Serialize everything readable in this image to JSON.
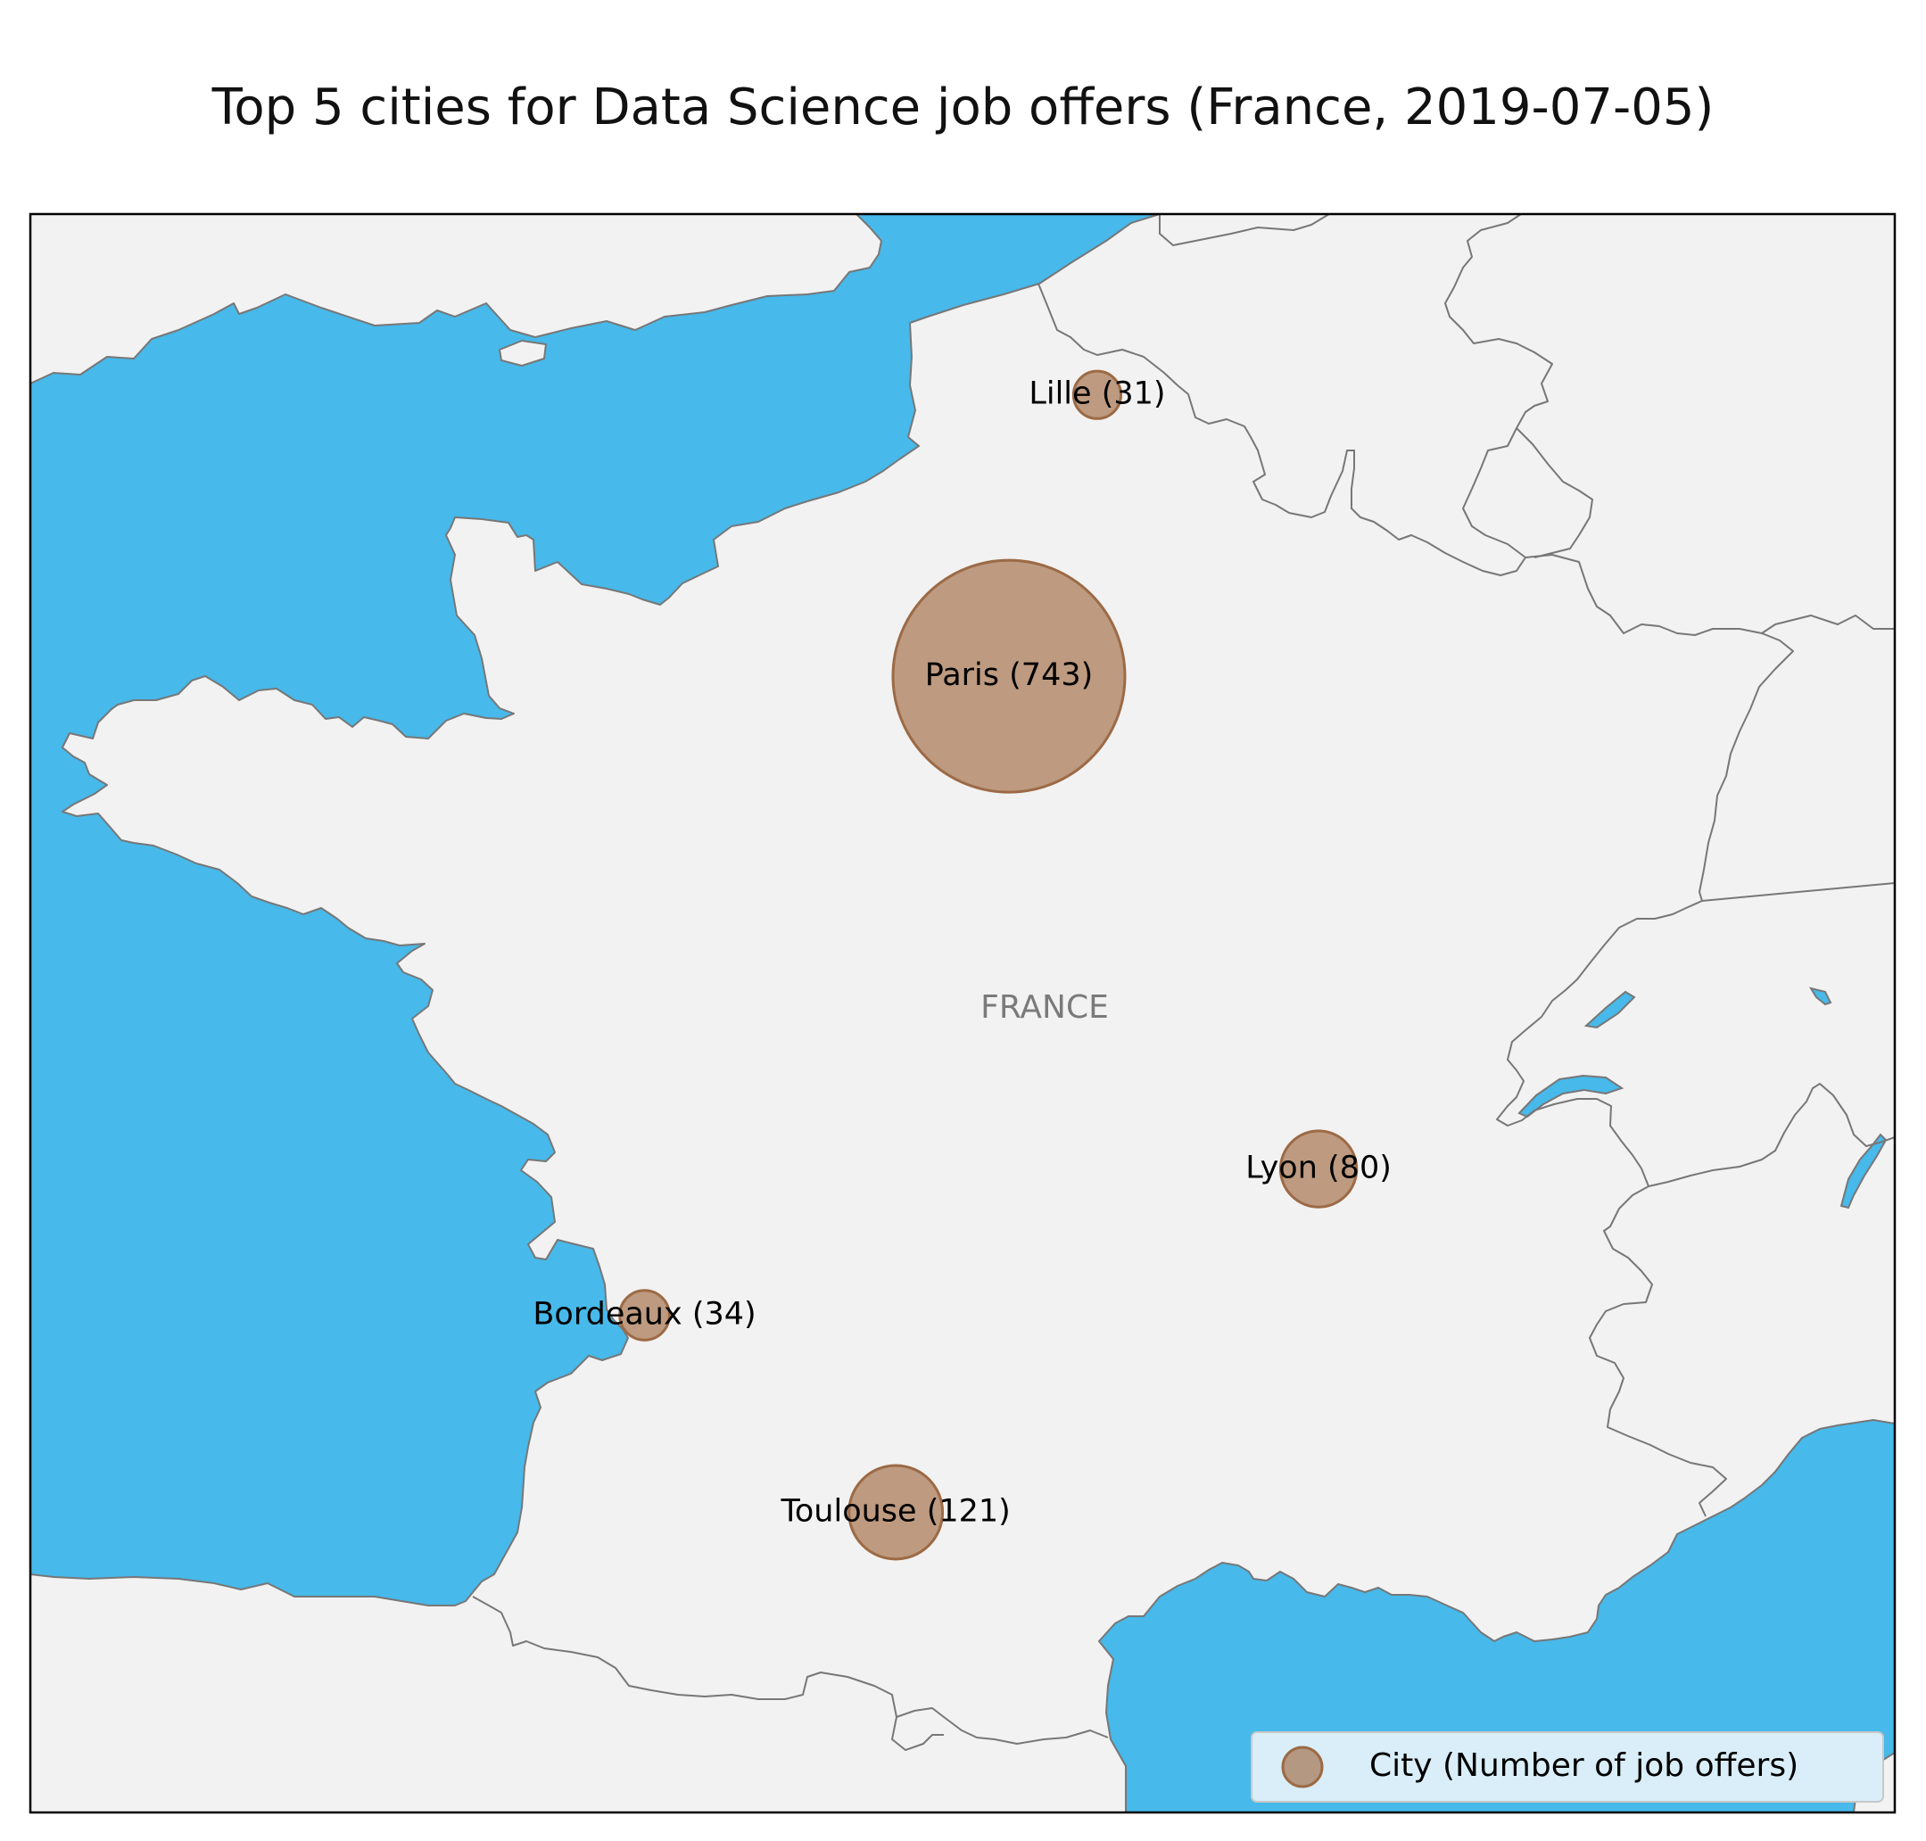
{
  "title": "Top 5 cities for Data Science job offers (France, 2019-07-05)",
  "country_label": "FRANCE",
  "legend": {
    "label": "City (Number of job offers)"
  },
  "colors": {
    "sea": "#47b9ea",
    "land": "#f2f2f2",
    "border": "#777777",
    "marker": "#a06a42"
  },
  "cities": [
    {
      "name": "Paris",
      "offers": 743,
      "label": "Paris (743)",
      "lon": 2.35,
      "lat": 48.86
    },
    {
      "name": "Toulouse",
      "offers": 121,
      "label": "Toulouse (121)",
      "lon": 1.44,
      "lat": 43.6
    },
    {
      "name": "Lyon",
      "offers": 80,
      "label": "Lyon (80)",
      "lon": 4.84,
      "lat": 45.76
    },
    {
      "name": "Bordeaux",
      "offers": 34,
      "label": "Bordeaux (34)",
      "lon": -0.58,
      "lat": 44.84
    },
    {
      "name": "Lille",
      "offers": 31,
      "label": "Lille (31)",
      "lon": 3.06,
      "lat": 50.63
    }
  ]
}
